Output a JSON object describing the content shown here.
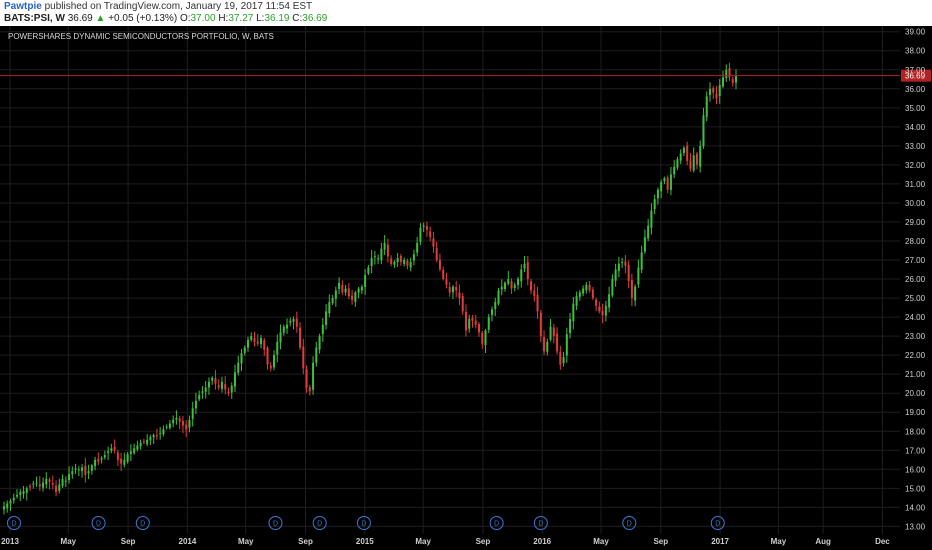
{
  "header": {
    "publisher": "Pawtpie",
    "published_text": "published on TradingView.com, January 19, 2017 11:54 EST",
    "symbol": "BATS:PSI, W",
    "last": "36.69",
    "change_arrow": "▲",
    "change": "+0.05 (+0.13%)",
    "o_label": "O:",
    "o_value": "37.00",
    "h_label": "H:",
    "h_value": "37.27",
    "l_label": "L:",
    "l_value": "36.19",
    "c_label": "C:",
    "c_value": "36.69"
  },
  "chart_data": {
    "type": "candlestick",
    "title": "POWERSHARES DYNAMIC SEMICONDUCTORS PORTFOLIO, W, BATS",
    "background": "#000000",
    "up_color": "#3fbf3f",
    "down_color": "#e03c3c",
    "price_line_color": "#b22222",
    "last_price": 36.69,
    "last_price_label": "36.69",
    "ylim": [
      12.6,
      39.3
    ],
    "y_ticks": [
      13,
      14,
      15,
      16,
      17,
      18,
      19,
      20,
      21,
      22,
      23,
      24,
      25,
      26,
      27,
      28,
      29,
      30,
      31,
      32,
      33,
      34,
      35,
      36,
      37,
      38,
      39
    ],
    "y_tick_labels": [
      "13.00",
      "14.00",
      "15.00",
      "16.00",
      "17.00",
      "18.00",
      "19.00",
      "20.00",
      "21.00",
      "22.00",
      "23.00",
      "24.00",
      "25.00",
      "26.00",
      "27.00",
      "28.00",
      "29.00",
      "30.00",
      "31.00",
      "32.00",
      "33.00",
      "34.00",
      "35.00",
      "36.00",
      "37.00",
      "38.00",
      "39.00"
    ],
    "x_range": [
      "2013-01-01",
      "2017-12-31"
    ],
    "x_ticks": [
      {
        "date": "2013-01-01",
        "label": "2013"
      },
      {
        "date": "2013-05-01",
        "label": "May"
      },
      {
        "date": "2013-09-01",
        "label": "Sep"
      },
      {
        "date": "2014-01-01",
        "label": "2014"
      },
      {
        "date": "2014-05-01",
        "label": "May"
      },
      {
        "date": "2014-09-01",
        "label": "Sep"
      },
      {
        "date": "2015-01-01",
        "label": "2015"
      },
      {
        "date": "2015-05-01",
        "label": "May"
      },
      {
        "date": "2015-09-01",
        "label": "Sep"
      },
      {
        "date": "2016-01-01",
        "label": "2016"
      },
      {
        "date": "2016-05-01",
        "label": "May"
      },
      {
        "date": "2016-09-01",
        "label": "Sep"
      },
      {
        "date": "2017-01-01",
        "label": "2017"
      },
      {
        "date": "2017-05-01",
        "label": "May"
      },
      {
        "date": "2017-08-01",
        "label": "Aug"
      },
      {
        "date": "2017-12-01",
        "label": "Dec"
      }
    ],
    "dividend_marker_label": "D",
    "dividend_dates": [
      "2013-01-01",
      "2013-06-24",
      "2013-09-23",
      "2014-06-23",
      "2014-09-22",
      "2014-12-22",
      "2015-09-21",
      "2015-12-21",
      "2016-06-20",
      "2016-12-19"
    ],
    "weekly_closes": [
      14.05,
      14.2,
      14.35,
      14.5,
      14.65,
      14.8,
      14.85,
      15.0,
      15.1,
      15.25,
      15.3,
      15.1,
      15.3,
      15.5,
      15.35,
      15.2,
      14.8,
      15.2,
      15.5,
      15.4,
      15.75,
      15.9,
      16.05,
      16.0,
      16.1,
      15.7,
      15.9,
      16.2,
      16.5,
      16.4,
      16.6,
      16.75,
      16.95,
      17.1,
      17.0,
      16.5,
      16.3,
      16.5,
      16.8,
      16.95,
      17.1,
      17.25,
      17.4,
      17.45,
      17.55,
      17.7,
      17.8,
      17.75,
      17.9,
      18.1,
      18.25,
      18.4,
      18.6,
      18.7,
      18.5,
      18.3,
      18.1,
      18.6,
      19.2,
      19.6,
      19.9,
      20.1,
      20.3,
      20.6,
      20.8,
      20.5,
      20.3,
      20.6,
      20.2,
      20.0,
      20.4,
      21.1,
      21.6,
      22.1,
      22.4,
      22.8,
      23.0,
      22.7,
      22.6,
      22.9,
      22.3,
      21.5,
      21.3,
      22.0,
      22.7,
      23.2,
      23.5,
      23.6,
      23.8,
      23.9,
      23.5,
      22.4,
      21.3,
      20.3,
      20.1,
      21.6,
      22.4,
      23.0,
      23.6,
      24.3,
      24.8,
      25.0,
      25.4,
      25.8,
      25.3,
      25.5,
      25.1,
      24.9,
      25.3,
      25.5,
      25.6,
      26.2,
      26.6,
      27.1,
      27.2,
      27.1,
      27.6,
      27.9,
      27.2,
      26.8,
      26.9,
      27.1,
      26.9,
      27.0,
      26.7,
      26.9,
      27.3,
      27.9,
      28.7,
      28.8,
      28.6,
      28.2,
      27.7,
      27.0,
      26.5,
      26.0,
      25.7,
      25.3,
      25.6,
      25.4,
      25.0,
      24.3,
      23.3,
      23.9,
      23.8,
      23.6,
      23.2,
      22.6,
      23.3,
      24.0,
      24.4,
      24.8,
      25.4,
      25.6,
      25.8,
      26.0,
      25.5,
      25.7,
      26.0,
      26.5,
      26.8,
      26.0,
      25.4,
      25.1,
      24.3,
      23.0,
      22.2,
      22.7,
      23.5,
      23.0,
      22.2,
      21.5,
      21.9,
      23.1,
      23.9,
      24.7,
      25.1,
      25.3,
      25.5,
      25.7,
      25.4,
      25.0,
      24.6,
      24.3,
      24.1,
      24.6,
      25.2,
      26.0,
      26.5,
      26.8,
      26.9,
      26.7,
      25.9,
      25.0,
      25.6,
      26.6,
      27.4,
      28.2,
      28.8,
      29.6,
      30.2,
      30.7,
      31.1,
      31.3,
      30.7,
      31.5,
      31.9,
      32.3,
      32.6,
      32.9,
      32.2,
      31.8,
      32.5,
      32.0,
      33.0,
      34.6,
      35.6,
      36.0,
      35.8,
      35.5,
      36.2,
      36.6,
      37.0,
      36.6,
      36.3,
      36.69
    ]
  }
}
